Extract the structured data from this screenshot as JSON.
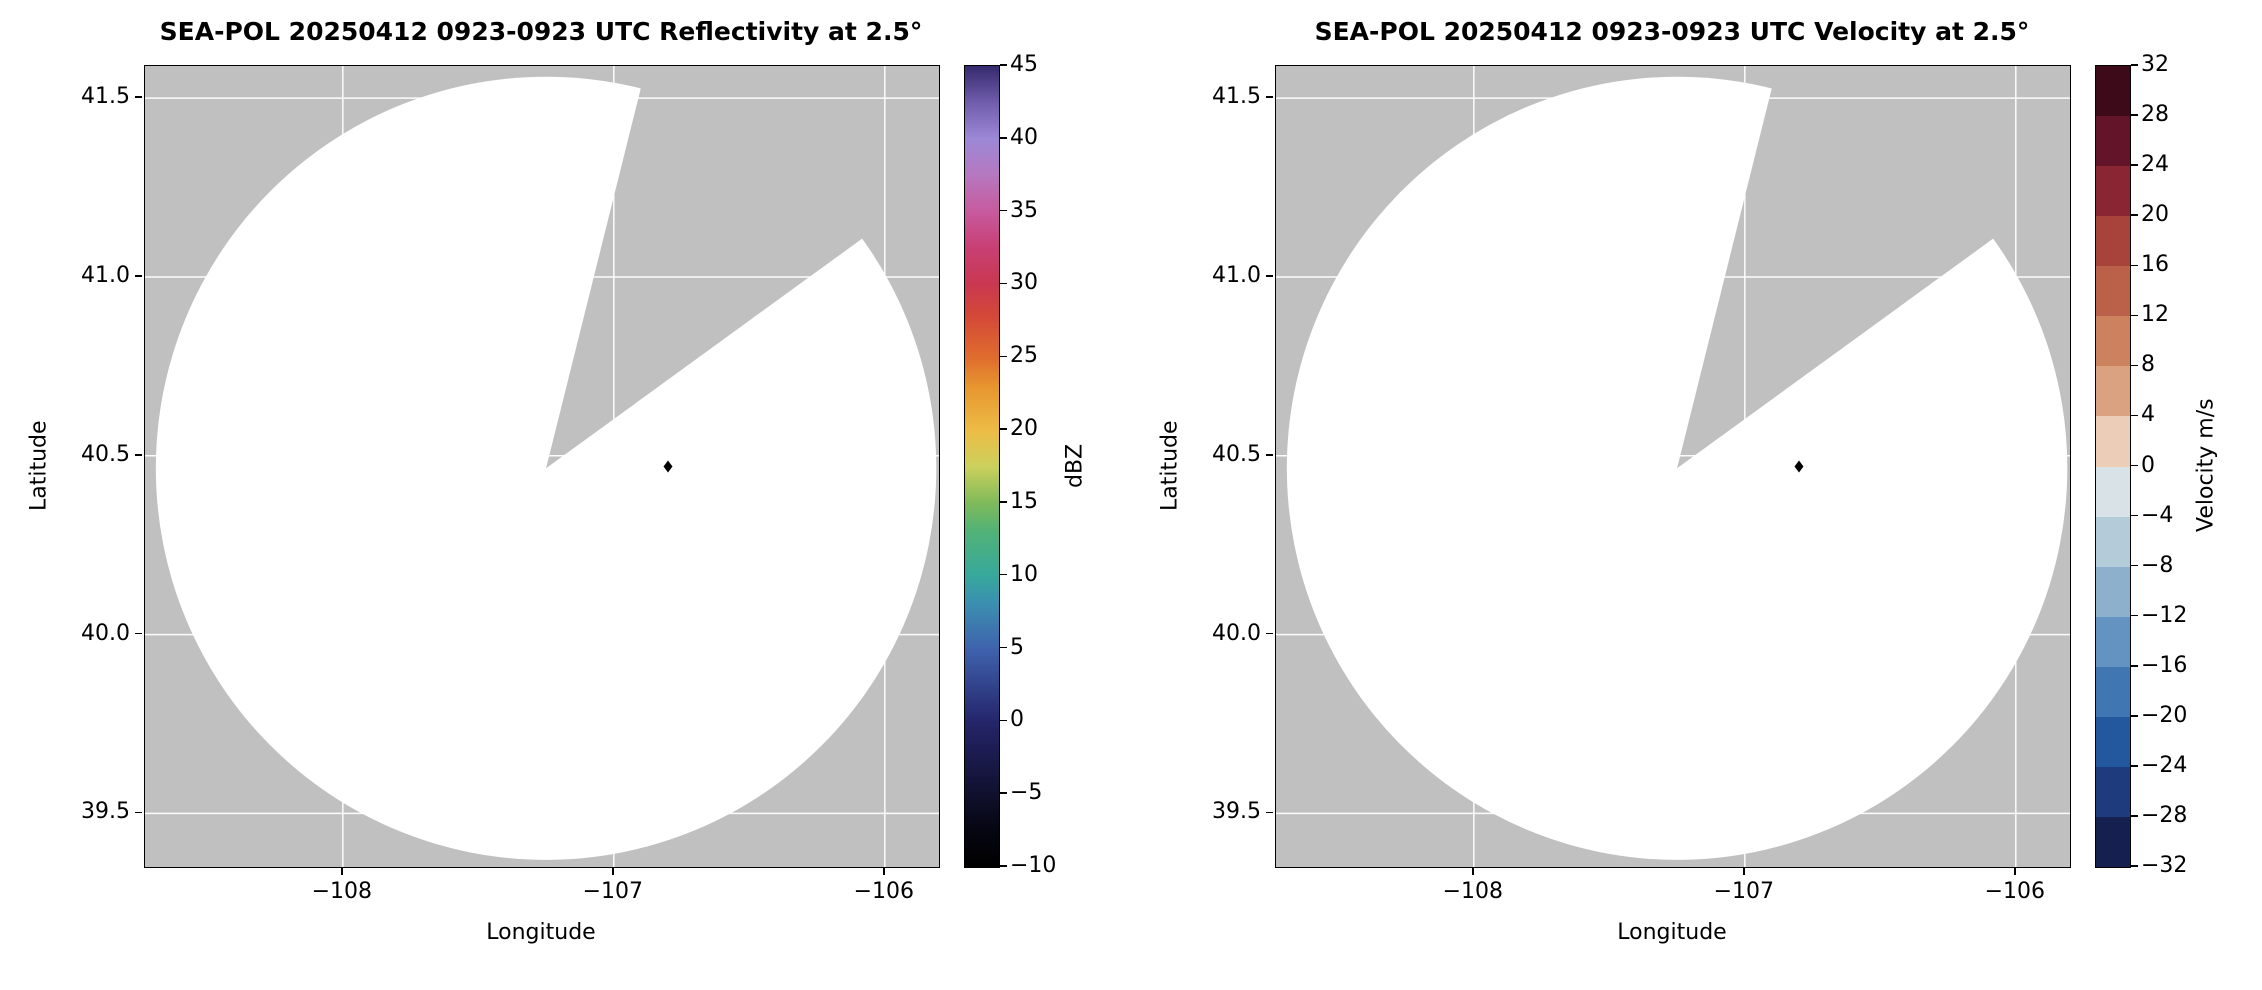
{
  "colors": {
    "figure_background": "#ffffff",
    "no_coverage_gray": "#c0c0c0",
    "coverage_white": "#ffffff",
    "gridline": "#ffffff",
    "axis_frame": "#000000",
    "text": "#000000",
    "marker": "#000000"
  },
  "panels": [
    {
      "title": "SEA-POL 20250412 0923-0923 UTC Reflectivity at 2.5°",
      "xlabel": "Longitude",
      "ylabel": "Latitude",
      "xtick_labels": [
        "−108",
        "−107",
        "−106"
      ],
      "ytick_labels": [
        "41.5",
        "41.0",
        "40.5",
        "40.0",
        "39.5"
      ],
      "colorbar": {
        "label": "dBZ",
        "kind": "gradient",
        "tick_labels": [
          "45",
          "40",
          "35",
          "30",
          "25",
          "20",
          "15",
          "10",
          "5",
          "0",
          "−5",
          "−10"
        ],
        "gradient_stops_bottom_to_top": [
          {
            "frac": 0.0,
            "color": "#000000"
          },
          {
            "frac": 0.05,
            "color": "#060614"
          },
          {
            "frac": 0.091,
            "color": "#10102e"
          },
          {
            "frac": 0.182,
            "color": "#25256b"
          },
          {
            "frac": 0.273,
            "color": "#3f63ae"
          },
          {
            "frac": 0.33,
            "color": "#3b90b0"
          },
          {
            "frac": 0.364,
            "color": "#37a89c"
          },
          {
            "frac": 0.42,
            "color": "#52b276"
          },
          {
            "frac": 0.455,
            "color": "#80ba5a"
          },
          {
            "frac": 0.5,
            "color": "#ccd05c"
          },
          {
            "frac": 0.545,
            "color": "#edbc45"
          },
          {
            "frac": 0.6,
            "color": "#e7952f"
          },
          {
            "frac": 0.636,
            "color": "#df6c2e"
          },
          {
            "frac": 0.69,
            "color": "#d34738"
          },
          {
            "frac": 0.727,
            "color": "#c93850"
          },
          {
            "frac": 0.773,
            "color": "#c83f74"
          },
          {
            "frac": 0.818,
            "color": "#c75a9e"
          },
          {
            "frac": 0.864,
            "color": "#b678c0"
          },
          {
            "frac": 0.909,
            "color": "#9c88d6"
          },
          {
            "frac": 0.955,
            "color": "#6f5cab"
          },
          {
            "frac": 1.0,
            "color": "#352a6e"
          }
        ]
      }
    },
    {
      "title": "SEA-POL 20250412 0923-0923 UTC Velocity at 2.5°",
      "xlabel": "Longitude",
      "ylabel": "Latitude",
      "xtick_labels": [
        "−108",
        "−107",
        "−106"
      ],
      "ytick_labels": [
        "41.5",
        "41.0",
        "40.5",
        "40.0",
        "39.5"
      ],
      "colorbar": {
        "label": "Velocity m/s",
        "kind": "discrete",
        "tick_labels": [
          "32",
          "28",
          "24",
          "20",
          "16",
          "12",
          "8",
          "4",
          "0",
          "−4",
          "−8",
          "−12",
          "−16",
          "−20",
          "−24",
          "−28",
          "−32"
        ],
        "segment_colors_top_to_bottom": [
          "#3c0a19",
          "#641428",
          "#8a2634",
          "#a8433c",
          "#bb614a",
          "#cc815f",
          "#dba282",
          "#eccdb8",
          "#d9e2e7",
          "#b4cbda",
          "#8db0cd",
          "#6493c1",
          "#4076b1",
          "#24589e",
          "#1e3b7e",
          "#15204f"
        ]
      }
    }
  ],
  "chart_data": [
    {
      "type": "heatmap",
      "title": "SEA-POL 20250412 0923-0923 UTC Reflectivity at 2.5°",
      "xlabel": "Longitude",
      "ylabel": "Latitude",
      "xlim": [
        -108.73,
        -105.8
      ],
      "ylim": [
        39.35,
        41.59
      ],
      "xticks": [
        -108,
        -107,
        -106
      ],
      "yticks": [
        41.5,
        41.0,
        40.5,
        40.0,
        39.5
      ],
      "grid": true,
      "value_label": "dBZ",
      "value_range": [
        -10,
        45
      ],
      "colorbar_ticks": [
        45,
        40,
        35,
        30,
        25,
        20,
        15,
        10,
        5,
        0,
        -5,
        -10
      ],
      "radar": {
        "center_lon": -107.25,
        "center_lat": 40.465,
        "radius_lon_deg": 1.44,
        "radius_lat_deg": 1.095,
        "blocked_sector_azimuth_deg": [
          14,
          54
        ]
      },
      "marker": {
        "lon": -106.8,
        "lat": 40.47
      },
      "echoes": "none visible — radar coverage circle is empty (white); gray denotes area outside coverage and the blocked sector wedge"
    },
    {
      "type": "heatmap",
      "title": "SEA-POL 20250412 0923-0923 UTC Velocity at 2.5°",
      "xlabel": "Longitude",
      "ylabel": "Latitude",
      "xlim": [
        -108.73,
        -105.8
      ],
      "ylim": [
        39.35,
        41.59
      ],
      "xticks": [
        -108,
        -107,
        -106
      ],
      "yticks": [
        41.5,
        41.0,
        40.5,
        40.0,
        39.5
      ],
      "grid": true,
      "value_label": "Velocity m/s",
      "value_range": [
        -32,
        32
      ],
      "colorbar_ticks": [
        32,
        28,
        24,
        20,
        16,
        12,
        8,
        4,
        0,
        -4,
        -8,
        -12,
        -16,
        -20,
        -24,
        -28,
        -32
      ],
      "radar": {
        "center_lon": -107.25,
        "center_lat": 40.465,
        "radius_lon_deg": 1.44,
        "radius_lat_deg": 1.095,
        "blocked_sector_azimuth_deg": [
          14,
          54
        ]
      },
      "marker": {
        "lon": -106.8,
        "lat": 40.47
      },
      "echoes": "none visible — radar coverage circle is empty (white); gray denotes area outside coverage and the blocked sector wedge"
    }
  ]
}
